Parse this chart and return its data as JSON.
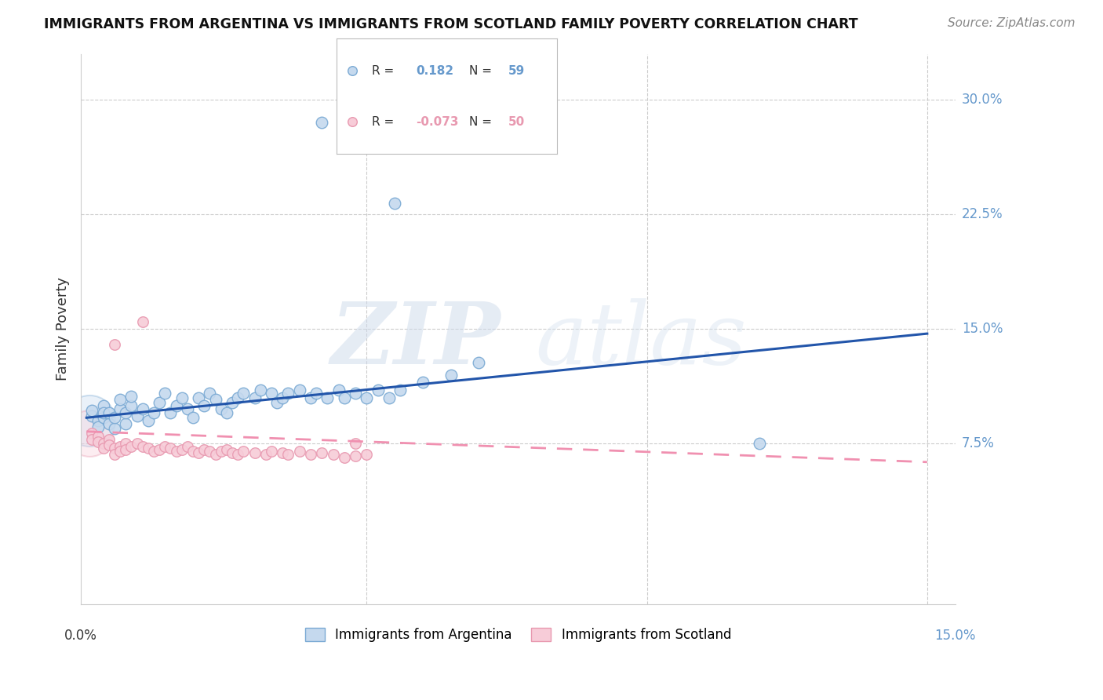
{
  "title": "IMMIGRANTS FROM ARGENTINA VS IMMIGRANTS FROM SCOTLAND FAMILY POVERTY CORRELATION CHART",
  "source": "Source: ZipAtlas.com",
  "ylabel": "Family Poverty",
  "ytick_labels": [
    "7.5%",
    "15.0%",
    "22.5%",
    "30.0%"
  ],
  "ytick_values": [
    0.075,
    0.15,
    0.225,
    0.3
  ],
  "xlim": [
    -0.001,
    0.155
  ],
  "ylim": [
    -0.03,
    0.33
  ],
  "argentina_color": "#c5d9ee",
  "argentina_edge_color": "#7baad4",
  "scotland_color": "#f7ccd8",
  "scotland_edge_color": "#e899b0",
  "argentina_line_color": "#2255aa",
  "scotland_line_color": "#f090b0",
  "legend_R_argentina": "0.182",
  "legend_N_argentina": "59",
  "legend_R_scotland": "-0.073",
  "legend_N_scotland": "50",
  "watermark_zip": "ZIP",
  "watermark_atlas": "atlas",
  "background_color": "#ffffff",
  "grid_color": "#cccccc",
  "right_tick_color": "#6699cc",
  "arg_line_y0": 0.092,
  "arg_line_y1": 0.147,
  "scot_line_y0": 0.083,
  "scot_line_y1": 0.063
}
